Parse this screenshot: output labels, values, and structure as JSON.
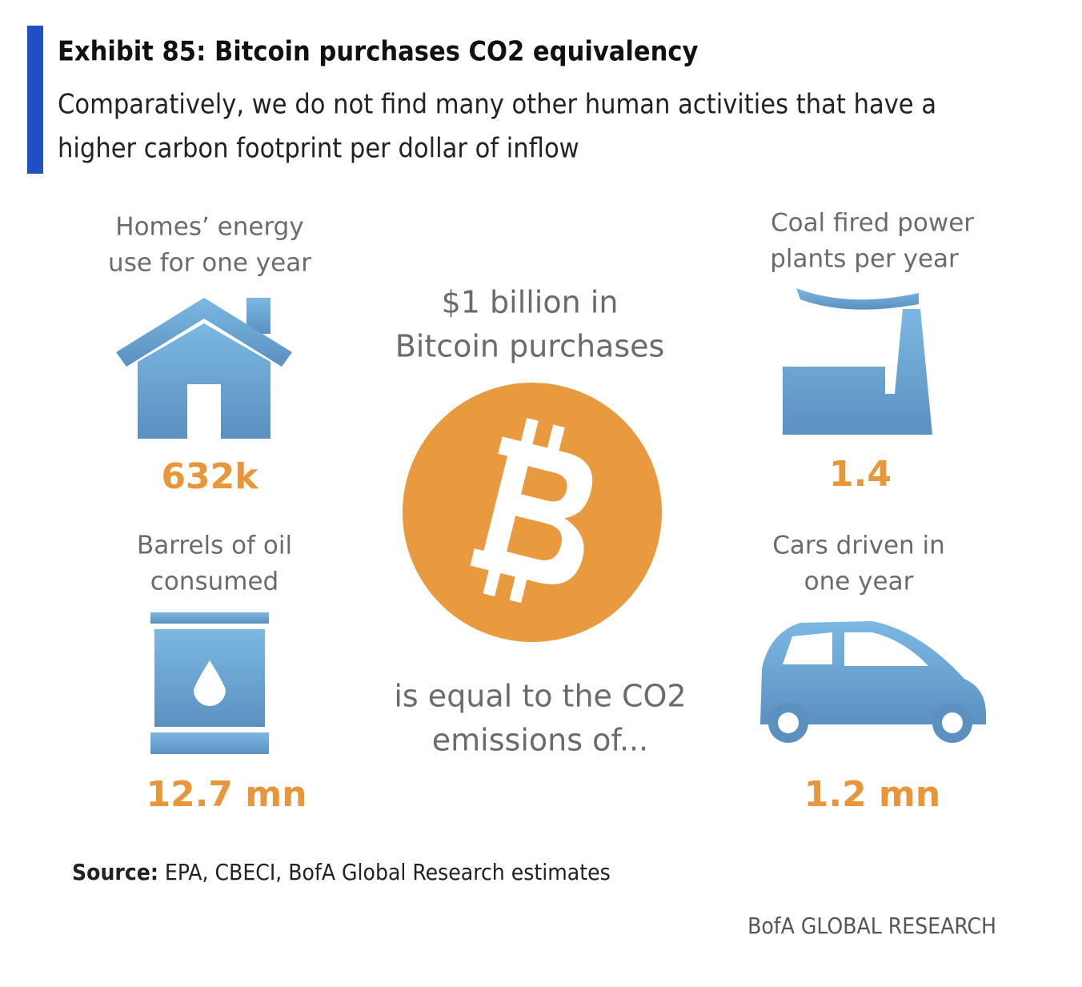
{
  "header": {
    "title": "Exhibit 85: Bitcoin purchases CO2 equivalency",
    "subtitle": [
      "Comparatively, we do not find many other human activities that have a",
      "higher carbon footprint per dollar of inflow"
    ]
  },
  "center": {
    "top_text": [
      "$1 billion in",
      "Bitcoin purchases"
    ],
    "bottom_text": [
      "is equal to the CO2",
      "emissions of..."
    ]
  },
  "items": [
    {
      "label": [
        "Homes’ energy",
        "use for one year"
      ],
      "value": "632k"
    },
    {
      "label": [
        "Coal fired power",
        "plants per  year"
      ],
      "value": "1.4"
    },
    {
      "label": [
        "Barrels of oil",
        "consumed"
      ],
      "value": "12.7 mn"
    },
    {
      "label": [
        "Cars driven in",
        "one year"
      ],
      "value": "1.2 mn"
    }
  ],
  "footer": {
    "source_label": "Source:",
    "source": "EPA, CBECI, BofA Global Research estimates",
    "brand": "BofA GLOBAL RESEARCH"
  }
}
